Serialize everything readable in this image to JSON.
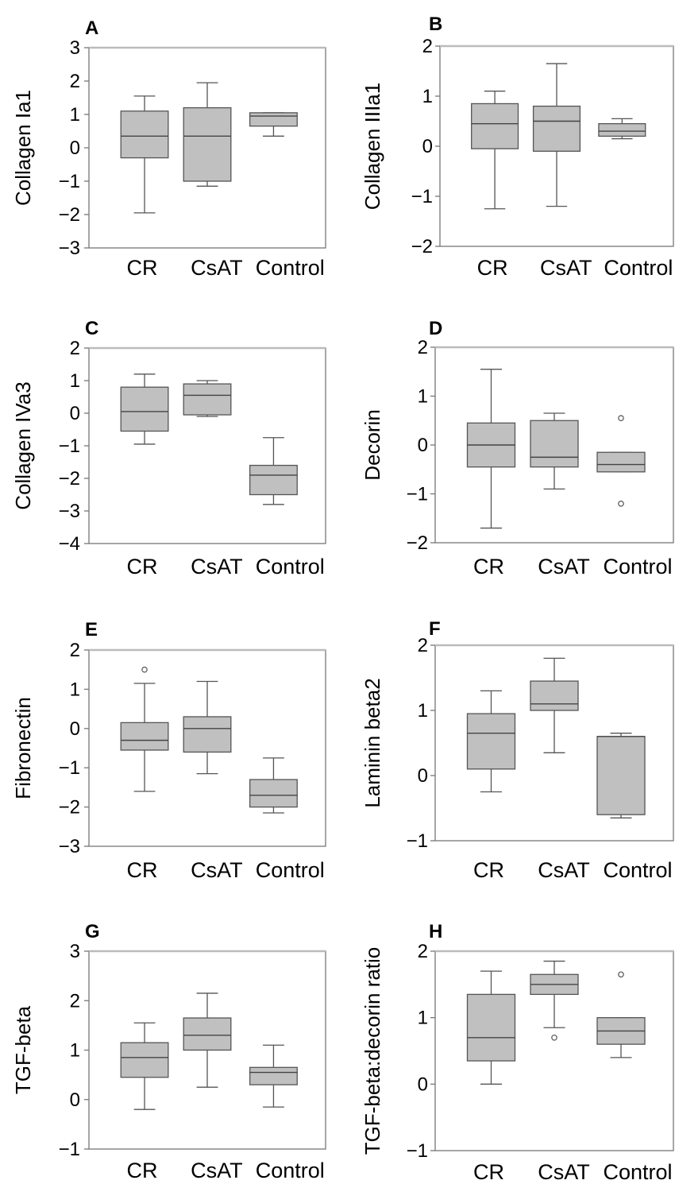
{
  "chart_data": [
    {
      "panel": "A",
      "type": "box",
      "ylabel": "Collagen Ia1",
      "ylim": [
        -3,
        3
      ],
      "yticks": [
        3,
        2,
        1,
        0,
        -1,
        -2,
        -3
      ],
      "yticklabels": [
        "3",
        "2",
        "1",
        "0",
        "−1",
        "−2",
        "−3"
      ],
      "categories": [
        "CR",
        "CsAT",
        "Control"
      ],
      "boxes": [
        {
          "category": "CR",
          "whisker_low": -1.95,
          "q1": -0.3,
          "median": 0.35,
          "q3": 1.1,
          "whisker_high": 1.55,
          "outliers": []
        },
        {
          "category": "CsAT",
          "whisker_low": -1.15,
          "q1": -1.0,
          "median": 0.35,
          "q3": 1.2,
          "whisker_high": 1.95,
          "outliers": []
        },
        {
          "category": "Control",
          "whisker_low": 0.35,
          "q1": 0.65,
          "median": 0.95,
          "q3": 1.05,
          "whisker_high": 1.05,
          "outliers": []
        }
      ]
    },
    {
      "panel": "B",
      "type": "box",
      "ylabel": "Collagen IIIa1",
      "ylim": [
        -2,
        2
      ],
      "yticks": [
        2,
        1,
        0,
        -1,
        -2
      ],
      "yticklabels": [
        "2",
        "1",
        "0",
        "−1",
        "−2"
      ],
      "categories": [
        "CR",
        "CsAT",
        "Control"
      ],
      "boxes": [
        {
          "category": "CR",
          "whisker_low": -1.25,
          "q1": -0.05,
          "median": 0.45,
          "q3": 0.85,
          "whisker_high": 1.1,
          "outliers": []
        },
        {
          "category": "CsAT",
          "whisker_low": -1.2,
          "q1": -0.1,
          "median": 0.5,
          "q3": 0.8,
          "whisker_high": 1.65,
          "outliers": []
        },
        {
          "category": "Control",
          "whisker_low": 0.15,
          "q1": 0.2,
          "median": 0.3,
          "q3": 0.45,
          "whisker_high": 0.55,
          "outliers": []
        }
      ]
    },
    {
      "panel": "C",
      "type": "box",
      "ylabel": "Collagen IVa3",
      "ylim": [
        -4,
        2
      ],
      "yticks": [
        2,
        1,
        0,
        -1,
        -2,
        -3,
        -4
      ],
      "yticklabels": [
        "2",
        "1",
        "0",
        "−1",
        "−2",
        "−3",
        "−4"
      ],
      "categories": [
        "CR",
        "CsAT",
        "Control"
      ],
      "boxes": [
        {
          "category": "CR",
          "whisker_low": -0.95,
          "q1": -0.55,
          "median": 0.05,
          "q3": 0.8,
          "whisker_high": 1.2,
          "outliers": []
        },
        {
          "category": "CsAT",
          "whisker_low": -0.1,
          "q1": -0.05,
          "median": 0.55,
          "q3": 0.9,
          "whisker_high": 1.0,
          "outliers": []
        },
        {
          "category": "Control",
          "whisker_low": -2.8,
          "q1": -2.5,
          "median": -1.9,
          "q3": -1.6,
          "whisker_high": -0.75,
          "outliers": []
        }
      ]
    },
    {
      "panel": "D",
      "type": "box",
      "ylabel": "Decorin",
      "ylim": [
        -2,
        2
      ],
      "yticks": [
        2,
        1,
        0,
        -1,
        -2
      ],
      "yticklabels": [
        "2",
        "1",
        "0",
        "−1",
        "−2"
      ],
      "categories": [
        "CR",
        "CsAT",
        "Control"
      ],
      "boxes": [
        {
          "category": "CR",
          "whisker_low": -1.7,
          "q1": -0.45,
          "median": 0.0,
          "q3": 0.45,
          "whisker_high": 1.55,
          "outliers": []
        },
        {
          "category": "CsAT",
          "whisker_low": -0.9,
          "q1": -0.45,
          "median": -0.25,
          "q3": 0.5,
          "whisker_high": 0.65,
          "outliers": []
        },
        {
          "category": "Control",
          "whisker_low": -0.55,
          "q1": -0.55,
          "median": -0.4,
          "q3": -0.15,
          "whisker_high": -0.15,
          "outliers": [
            0.55,
            -1.2
          ]
        }
      ]
    },
    {
      "panel": "E",
      "type": "box",
      "ylabel": "Fibronectin",
      "ylim": [
        -3,
        2
      ],
      "yticks": [
        2,
        1,
        0,
        -1,
        -2,
        -3
      ],
      "yticklabels": [
        "2",
        "1",
        "0",
        "−1",
        "−2",
        "−3"
      ],
      "categories": [
        "CR",
        "CsAT",
        "Control"
      ],
      "boxes": [
        {
          "category": "CR",
          "whisker_low": -1.6,
          "q1": -0.55,
          "median": -0.3,
          "q3": 0.15,
          "whisker_high": 1.15,
          "outliers": [
            1.5
          ]
        },
        {
          "category": "CsAT",
          "whisker_low": -1.15,
          "q1": -0.6,
          "median": 0.0,
          "q3": 0.3,
          "whisker_high": 1.2,
          "outliers": []
        },
        {
          "category": "Control",
          "whisker_low": -2.15,
          "q1": -2.0,
          "median": -1.7,
          "q3": -1.3,
          "whisker_high": -0.75,
          "outliers": []
        }
      ]
    },
    {
      "panel": "F",
      "type": "box",
      "ylabel": "Laminin beta2",
      "ylim": [
        -1,
        2
      ],
      "yticks": [
        2,
        1,
        0,
        -1
      ],
      "yticklabels": [
        "2",
        "1",
        "0",
        "−1"
      ],
      "categories": [
        "CR",
        "CsAT",
        "Control"
      ],
      "boxes": [
        {
          "category": "CR",
          "whisker_low": -0.25,
          "q1": 0.1,
          "median": 0.65,
          "q3": 0.95,
          "whisker_high": 1.3,
          "outliers": []
        },
        {
          "category": "CsAT",
          "whisker_low": 0.35,
          "q1": 1.0,
          "median": 1.1,
          "q3": 1.45,
          "whisker_high": 1.8,
          "outliers": []
        },
        {
          "category": "Control",
          "whisker_low": -0.65,
          "q1": -0.6,
          "median": 0.6,
          "q3": 0.6,
          "whisker_high": 0.65,
          "outliers": []
        }
      ]
    },
    {
      "panel": "G",
      "type": "box",
      "ylabel": "TGF-beta",
      "ylim": [
        -1,
        3
      ],
      "yticks": [
        3,
        2,
        1,
        0,
        -1
      ],
      "yticklabels": [
        "3",
        "2",
        "1",
        "0",
        "−1"
      ],
      "categories": [
        "CR",
        "CsAT",
        "Control"
      ],
      "boxes": [
        {
          "category": "CR",
          "whisker_low": -0.2,
          "q1": 0.45,
          "median": 0.85,
          "q3": 1.15,
          "whisker_high": 1.55,
          "outliers": []
        },
        {
          "category": "CsAT",
          "whisker_low": 0.25,
          "q1": 1.0,
          "median": 1.3,
          "q3": 1.65,
          "whisker_high": 2.15,
          "outliers": []
        },
        {
          "category": "Control",
          "whisker_low": -0.15,
          "q1": 0.3,
          "median": 0.55,
          "q3": 0.65,
          "whisker_high": 1.1,
          "outliers": []
        }
      ]
    },
    {
      "panel": "H",
      "type": "box",
      "ylabel": "TGF-beta:decorin ratio",
      "ylim": [
        -1,
        2
      ],
      "yticks": [
        2,
        1,
        0,
        -1
      ],
      "yticklabels": [
        "2",
        "1",
        "0",
        "−1"
      ],
      "categories": [
        "CR",
        "CsAT",
        "Control"
      ],
      "boxes": [
        {
          "category": "CR",
          "whisker_low": 0.0,
          "q1": 0.35,
          "median": 0.7,
          "q3": 1.35,
          "whisker_high": 1.7,
          "outliers": []
        },
        {
          "category": "CsAT",
          "whisker_low": 0.85,
          "q1": 1.35,
          "median": 1.5,
          "q3": 1.65,
          "whisker_high": 1.85,
          "outliers": [
            0.7
          ]
        },
        {
          "category": "Control",
          "whisker_low": 0.4,
          "q1": 0.6,
          "median": 0.8,
          "q3": 1.0,
          "whisker_high": 1.0,
          "outliers": [
            1.65
          ]
        }
      ]
    }
  ]
}
